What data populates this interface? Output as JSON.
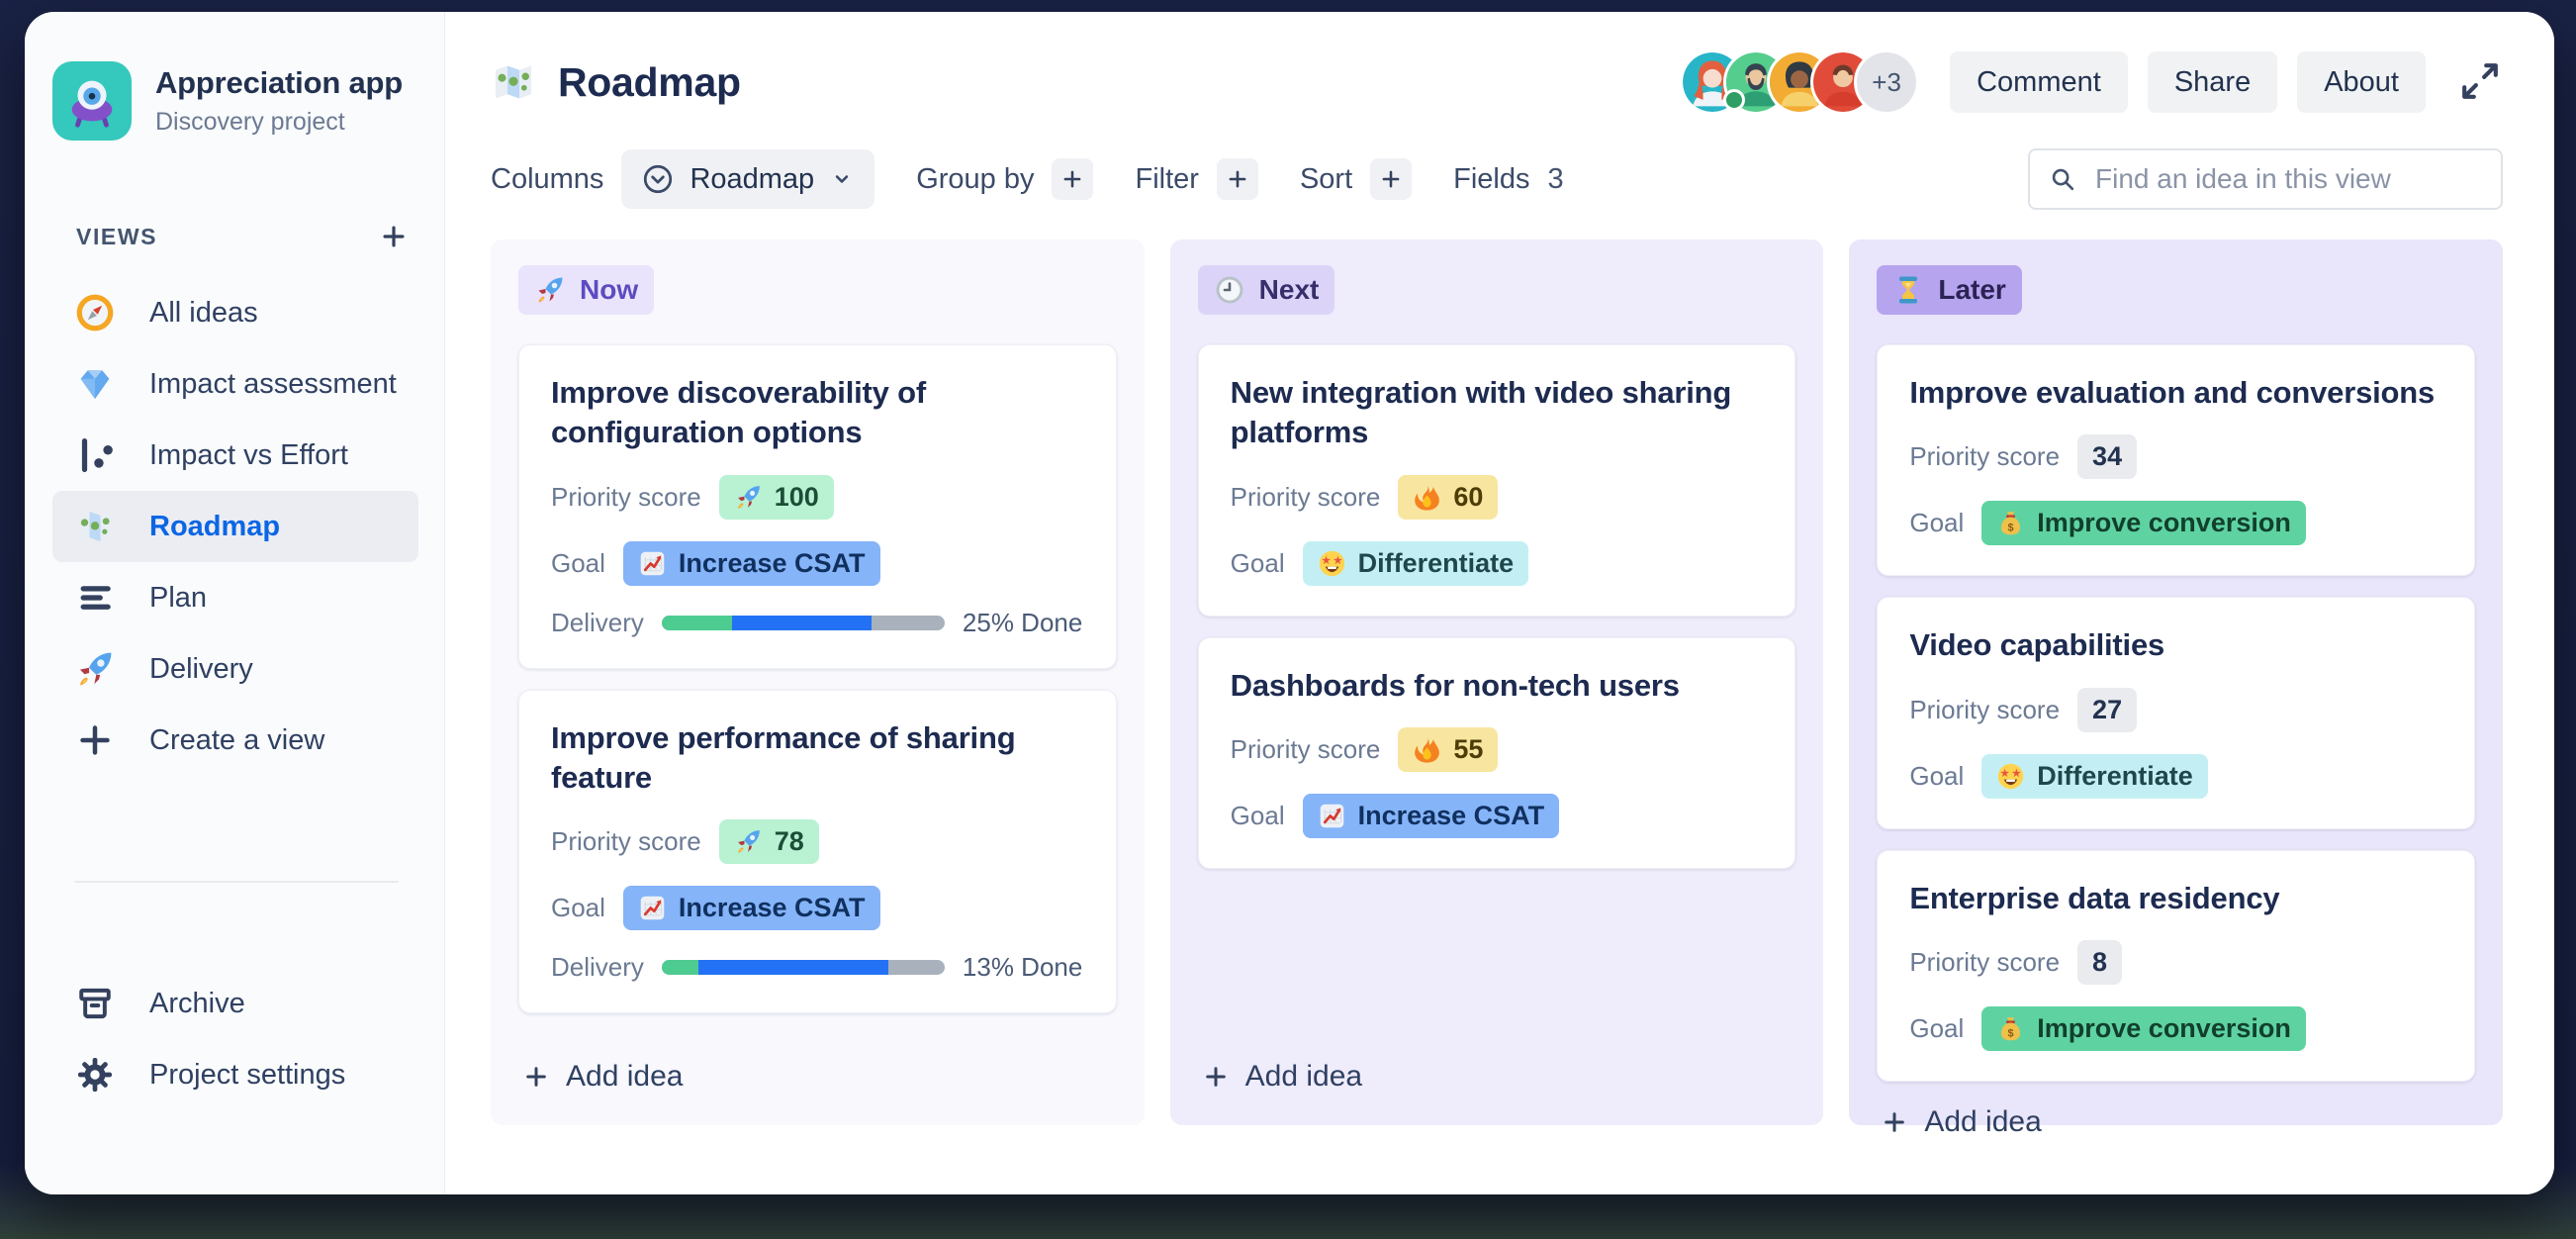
{
  "sidebar": {
    "project": {
      "name": "Appreciation app",
      "subtitle": "Discovery project",
      "icon": "alien-monster"
    },
    "views_label": "VIEWS",
    "items": [
      {
        "label": "All ideas",
        "icon": "compass",
        "selected": false
      },
      {
        "label": "Impact assessment",
        "icon": "gem",
        "selected": false
      },
      {
        "label": "Impact vs Effort",
        "icon": "scatter-chart",
        "selected": false
      },
      {
        "label": "Roadmap",
        "icon": "world-map",
        "selected": true
      },
      {
        "label": "Plan",
        "icon": "align-lines",
        "selected": false
      },
      {
        "label": "Delivery",
        "icon": "rocket",
        "selected": false
      },
      {
        "label": "Create a view",
        "icon": "plus",
        "selected": false
      }
    ],
    "footer_items": [
      {
        "label": "Archive",
        "icon": "archive-box"
      },
      {
        "label": "Project settings",
        "icon": "gear"
      }
    ]
  },
  "header": {
    "title": "Roadmap",
    "title_icon": "world-map",
    "avatars_overflow": "+3",
    "buttons": [
      {
        "label": "Comment"
      },
      {
        "label": "Share"
      },
      {
        "label": "About"
      }
    ]
  },
  "toolbar": {
    "columns_label": "Columns",
    "view_name": "Roadmap",
    "group_by_label": "Group by",
    "filter_label": "Filter",
    "sort_label": "Sort",
    "fields_label": "Fields",
    "fields_count": "3",
    "search_placeholder": "Find an idea in this view"
  },
  "board": {
    "add_idea_label": "Add idea",
    "field_labels": {
      "priority": "Priority score",
      "goal": "Goal",
      "delivery": "Delivery"
    },
    "columns": [
      {
        "id": "now",
        "label": "Now",
        "icon": "rocket",
        "cards": [
          {
            "title": "Improve discoverability of configuration options",
            "priority": {
              "icon": "rocket",
              "value": "100",
              "style": "green"
            },
            "goal": {
              "icon": "chart-up",
              "label": "Increase CSAT",
              "style": "blue"
            },
            "delivery": {
              "done_pct": 25,
              "in_progress_pct": 49,
              "label": "25% Done"
            }
          },
          {
            "title": "Improve performance of sharing feature",
            "priority": {
              "icon": "rocket",
              "value": "78",
              "style": "green"
            },
            "goal": {
              "icon": "chart-up",
              "label": "Increase CSAT",
              "style": "blue"
            },
            "delivery": {
              "done_pct": 13,
              "in_progress_pct": 67,
              "label": "13% Done"
            }
          }
        ]
      },
      {
        "id": "next",
        "label": "Next",
        "icon": "clock",
        "cards": [
          {
            "title": "New integration with video sharing platforms",
            "priority": {
              "icon": "fire",
              "value": "60",
              "style": "yellow"
            },
            "goal": {
              "icon": "star-struck",
              "label": "Differentiate",
              "style": "cyan"
            },
            "delivery": null
          },
          {
            "title": "Dashboards for non-tech users",
            "priority": {
              "icon": "fire",
              "value": "55",
              "style": "yellow"
            },
            "goal": {
              "icon": "chart-up",
              "label": "Increase CSAT",
              "style": "blue"
            },
            "delivery": null
          }
        ]
      },
      {
        "id": "later",
        "label": "Later",
        "icon": "hourglass",
        "cards": [
          {
            "title": "Improve evaluation and conversions",
            "priority": {
              "icon": null,
              "value": "34",
              "style": "gray"
            },
            "goal": {
              "icon": "money-bag",
              "label": "Improve conversion",
              "style": "green-strong"
            },
            "delivery": null
          },
          {
            "title": "Video capabilities",
            "priority": {
              "icon": null,
              "value": "27",
              "style": "gray"
            },
            "goal": {
              "icon": "star-struck",
              "label": "Differentiate",
              "style": "cyan"
            },
            "delivery": null
          },
          {
            "title": "Enterprise data residency",
            "priority": {
              "icon": null,
              "value": "8",
              "style": "gray"
            },
            "goal": {
              "icon": "money-bag",
              "label": "Improve conversion",
              "style": "green-strong"
            },
            "delivery": null
          }
        ]
      }
    ]
  },
  "colors": {
    "accent_blue": "#0C66E4",
    "column_now_bg": "#F8F8FD",
    "column_next_bg": "#EFECFB",
    "column_later_bg": "#E9E5FA",
    "badge_now": "#E9E4FB",
    "badge_next": "#DCD4F8",
    "badge_later": "#B6A4EE",
    "priority_green": "#B8F2D2",
    "priority_yellow": "#F8E6A0",
    "priority_gray": "#E9EBEF",
    "goal_blue": "#85B4F9",
    "goal_cyan": "#C3EFF4",
    "goal_green": "#5ED3A1",
    "progress_done": "#4ECB90",
    "progress_in_progress": "#2372F5",
    "progress_remaining": "#A9B1BD"
  }
}
